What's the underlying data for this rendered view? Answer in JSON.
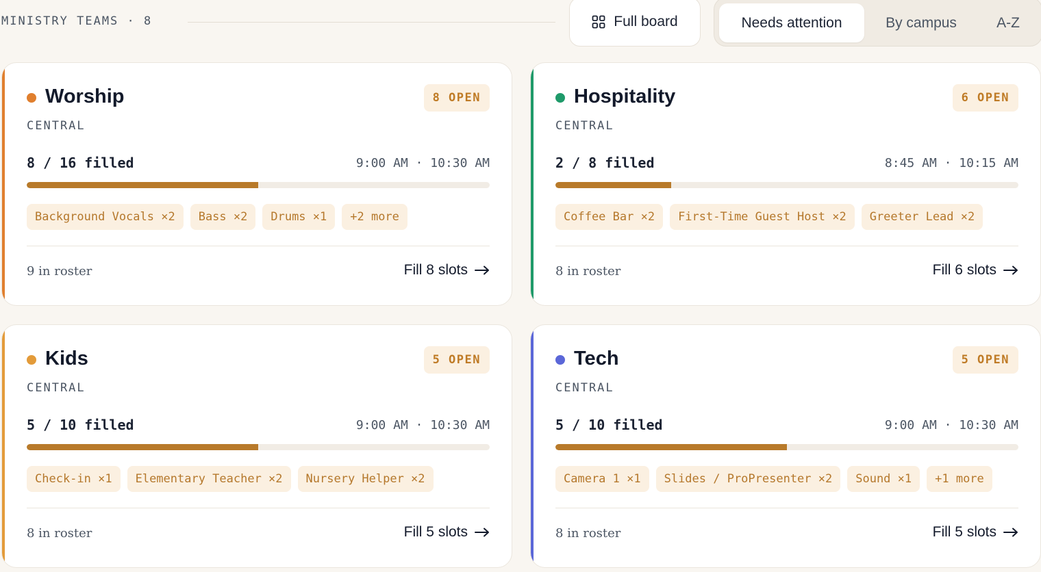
{
  "header": {
    "section_label": "MINISTRY TEAMS · 8",
    "full_board_label": "Full board",
    "sort_options": [
      "Needs attention",
      "By campus",
      "A-Z"
    ],
    "active_sort": "Needs attention"
  },
  "colors": {
    "worship": "#e07f2e",
    "hospitality": "#1f9a6a",
    "kids": "#e39b3a",
    "tech": "#5b67d8",
    "progress_fill": "#b87a2a",
    "badge_text": "#bf7b26"
  },
  "teams": [
    {
      "name": "Worship",
      "open_badge": "8 OPEN",
      "campus": "CENTRAL",
      "filled": "8 / 16 filled",
      "fill_fraction": 0.5,
      "times": "9:00 AM · 10:30 AM",
      "chips": [
        "Background Vocals ×2",
        "Bass ×2",
        "Drums ×1",
        "+2 more"
      ],
      "roster": "9 in roster",
      "action": "Fill 8 slots"
    },
    {
      "name": "Hospitality",
      "open_badge": "6 OPEN",
      "campus": "CENTRAL",
      "filled": "2 / 8 filled",
      "fill_fraction": 0.25,
      "times": "8:45 AM · 10:15 AM",
      "chips": [
        "Coffee Bar ×2",
        "First-Time Guest Host ×2",
        "Greeter Lead ×2"
      ],
      "roster": "8 in roster",
      "action": "Fill 6 slots"
    },
    {
      "name": "Kids",
      "open_badge": "5 OPEN",
      "campus": "CENTRAL",
      "filled": "5 / 10 filled",
      "fill_fraction": 0.5,
      "times": "9:00 AM · 10:30 AM",
      "chips": [
        "Check-in ×1",
        "Elementary Teacher ×2",
        "Nursery Helper ×2"
      ],
      "roster": "8 in roster",
      "action": "Fill 5 slots"
    },
    {
      "name": "Tech",
      "open_badge": "5 OPEN",
      "campus": "CENTRAL",
      "filled": "5 / 10 filled",
      "fill_fraction": 0.5,
      "times": "9:00 AM · 10:30 AM",
      "chips": [
        "Camera 1 ×1",
        "Slides / ProPresenter ×2",
        "Sound ×1",
        "+1 more"
      ],
      "roster": "8 in roster",
      "action": "Fill 5 slots"
    }
  ]
}
